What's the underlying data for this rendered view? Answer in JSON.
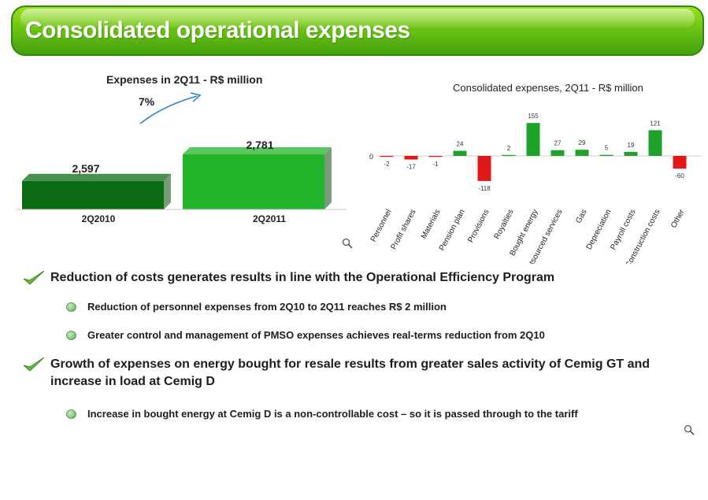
{
  "title": "Consolidated operational expenses",
  "left_chart": {
    "title": "Expenses in 2Q11 - R$ million",
    "growth": "7%",
    "chart_data": {
      "type": "bar",
      "categories": [
        "2Q2010",
        "2Q2011"
      ],
      "values": [
        2597,
        2781
      ],
      "labels": [
        "2,597",
        "2,781"
      ],
      "colors": [
        "#0b6b12",
        "#22b42a"
      ]
    }
  },
  "right_chart": {
    "title": "Consolidated expenses, 2Q11 - R$ million",
    "zero_label": "0",
    "chart_data": {
      "type": "bar",
      "title": "Consolidated expenses, 2Q11 - R$ million",
      "categories": [
        "Personnel",
        "Profit shares",
        "Materials",
        "Pension plan",
        "Provisions",
        "Royalties",
        "Bought energy",
        "Outsourced services",
        "Gas",
        "Depreciation",
        "Payroll costs",
        "Construction costs",
        "Other"
      ],
      "values": [
        -2,
        -17,
        -1,
        24,
        -118,
        2,
        155,
        27,
        29,
        5,
        19,
        121,
        -60
      ],
      "positive_color": "#1fa32a",
      "negative_color": "#e11818"
    }
  },
  "bullets": [
    {
      "text": "Reduction of costs generates results in line with the Operational Efficiency Program",
      "subs": [
        "Reduction of personnel expenses from 2Q10 to 2Q11 reaches R$ 2 million",
        "Greater control and management of PMSO expenses achieves real-terms reduction from 2Q10"
      ]
    },
    {
      "text": "Growth of expenses on energy bought for resale results from greater sales activity of Cemig GT and increase in load at Cemig D",
      "subs": [
        "Increase in bought energy at Cemig D is a non-controllable cost – so it is passed through to the tariff"
      ]
    }
  ],
  "icons": [
    "magnifier-icon",
    "check-icon",
    "arrow-icon"
  ]
}
